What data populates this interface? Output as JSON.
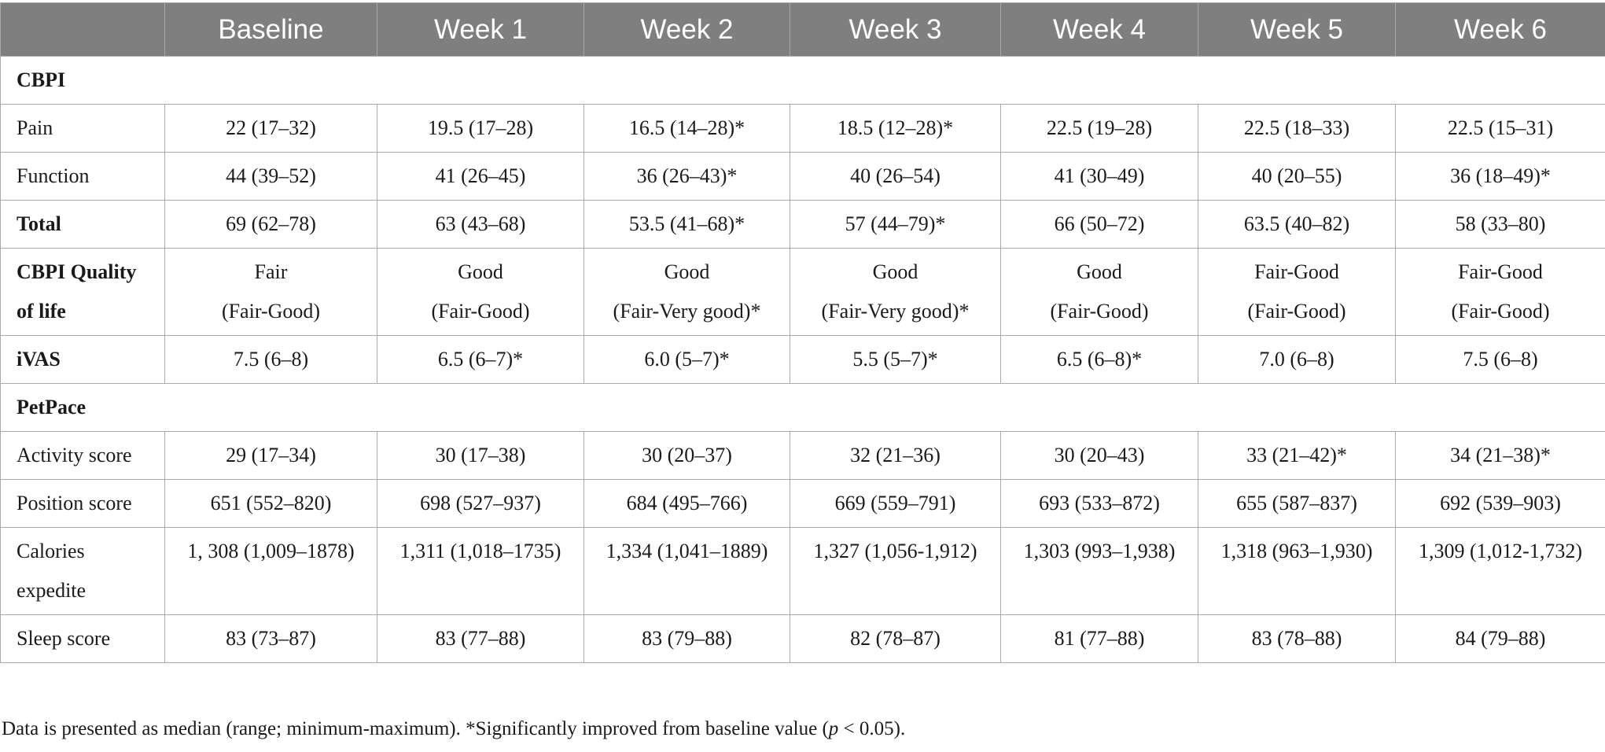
{
  "columns": [
    "",
    "Baseline",
    "Week 1",
    "Week 2",
    "Week 3",
    "Week 4",
    "Week 5",
    "Week 6"
  ],
  "rows": [
    {
      "type": "section",
      "label": "CBPI"
    },
    {
      "type": "data",
      "label": "Pain",
      "bold": false,
      "values": [
        "22 (17–32)",
        "19.5 (17–28)",
        "16.5 (14–28)*",
        "18.5 (12–28)*",
        "22.5 (19–28)",
        "22.5 (18–33)",
        "22.5 (15–31)"
      ]
    },
    {
      "type": "data",
      "label": "Function",
      "bold": false,
      "values": [
        "44 (39–52)",
        "41 (26–45)",
        "36 (26–43)*",
        "40 (26–54)",
        "41 (30–49)",
        "40 (20–55)",
        "36 (18–49)*"
      ]
    },
    {
      "type": "data",
      "label": "Total",
      "bold": true,
      "values": [
        "69 (62–78)",
        "63 (43–68)",
        "53.5 (41–68)*",
        "57 (44–79)*",
        "66 (50–72)",
        "63.5 (40–82)",
        "58 (33–80)"
      ]
    },
    {
      "type": "tall",
      "label_lines": [
        "CBPI Quality",
        "of life"
      ],
      "bold": true,
      "values": [
        [
          "Fair",
          "(Fair-Good)"
        ],
        [
          "Good",
          "(Fair-Good)"
        ],
        [
          "Good",
          "(Fair-Very good)*"
        ],
        [
          "Good",
          "(Fair-Very good)*"
        ],
        [
          "Good",
          "(Fair-Good)"
        ],
        [
          "Fair-Good",
          "(Fair-Good)"
        ],
        [
          "Fair-Good",
          "(Fair-Good)"
        ]
      ]
    },
    {
      "type": "data",
      "label": "iVAS",
      "bold": true,
      "values": [
        "7.5 (6–8)",
        "6.5 (6–7)*",
        "6.0 (5–7)*",
        "5.5 (5–7)*",
        "6.5 (6–8)*",
        "7.0 (6–8)",
        "7.5 (6–8)"
      ]
    },
    {
      "type": "section",
      "label": "PetPace"
    },
    {
      "type": "data",
      "label": "Activity score",
      "bold": false,
      "values": [
        "29 (17–34)",
        "30 (17–38)",
        "30 (20–37)",
        "32 (21–36)",
        "30 (20–43)",
        "33 (21–42)*",
        "34 (21–38)*"
      ]
    },
    {
      "type": "data",
      "label": "Position score",
      "bold": false,
      "values": [
        "651 (552–820)",
        "698 (527–937)",
        "684 (495–766)",
        "669 (559–791)",
        "693 (533–872)",
        "655 (587–837)",
        "692 (539–903)"
      ]
    },
    {
      "type": "tall",
      "label_lines": [
        "Calories",
        "expedite"
      ],
      "bold": false,
      "values": [
        [
          "1, 308 (1,009–1878)",
          ""
        ],
        [
          "1,311 (1,018–1735)",
          ""
        ],
        [
          "1,334 (1,041–1889)",
          ""
        ],
        [
          "1,327 (1,056-1,912)",
          ""
        ],
        [
          "1,303 (993–1,938)",
          ""
        ],
        [
          "1,318 (963–1,930)",
          ""
        ],
        [
          "1,309 (1,012-1,732)",
          ""
        ]
      ]
    },
    {
      "type": "data",
      "label": "Sleep score",
      "bold": false,
      "values": [
        "83 (73–87)",
        "83 (77–88)",
        "83 (79–88)",
        "82 (78–87)",
        "81 (77–88)",
        "83 (78–88)",
        "84 (79–88)"
      ]
    }
  ],
  "footnote": {
    "text_before": "Data is presented as median (range; minimum-maximum). *Significantly improved from baseline value (",
    "italic": "p",
    "text_after": " < 0.05)."
  }
}
